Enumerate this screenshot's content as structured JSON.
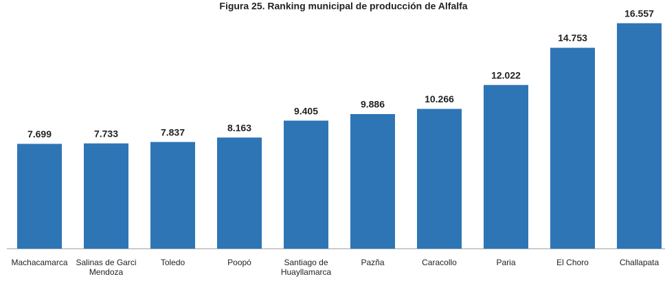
{
  "chart_data": {
    "type": "bar",
    "title": "Figura 25. Ranking municipal de producción de Alfalfa",
    "categories": [
      "Machacamarca",
      "Salinas de Garci Mendoza",
      "Toledo",
      "Poopó",
      "Santiago de Huayllamarca",
      "Pazña",
      "Caracollo",
      "Paria",
      "El Choro",
      "Challapata"
    ],
    "values": [
      7.699,
      7.733,
      7.837,
      8.163,
      9.405,
      9.886,
      10.266,
      12.022,
      14.753,
      16.557
    ],
    "color": "#2e75b6",
    "ylim": [
      0,
      17
    ]
  }
}
